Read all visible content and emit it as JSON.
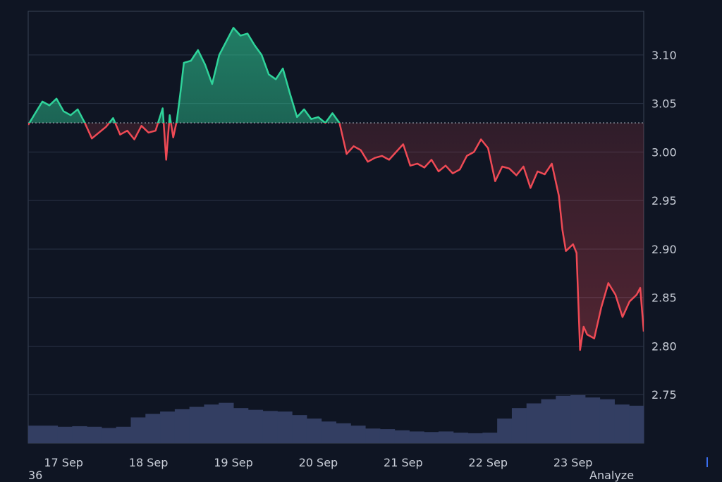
{
  "chart_data": {
    "type": "area",
    "title": "",
    "xlabel": "",
    "ylabel": "",
    "baseline": 3.03,
    "ylim": [
      2.7,
      3.145
    ],
    "y_ticks": [
      2.75,
      2.8,
      2.85,
      2.9,
      2.95,
      3.0,
      3.05,
      3.1
    ],
    "y_tick_labels": [
      "2.75",
      "2.80",
      "2.85",
      "2.90",
      "2.95",
      "3.00",
      "3.05",
      "3.10"
    ],
    "x_range": [
      "2023-09-16T14:00",
      "2023-09-23T20:00"
    ],
    "x_ticks": [
      "2023-09-17",
      "2023-09-18",
      "2023-09-19",
      "2023-09-20",
      "2023-09-21",
      "2023-09-22",
      "2023-09-23"
    ],
    "x_tick_labels": [
      "17 Sep",
      "18 Sep",
      "19 Sep",
      "20 Sep",
      "21 Sep",
      "22 Sep",
      "23 Sep"
    ],
    "grid": true,
    "colors": {
      "up": "#2fd39a",
      "down": "#ef4a55",
      "volume": "#333e62",
      "background": "#0f1523",
      "grid": "#2a3346",
      "baseline": "#9aa1ad"
    },
    "series": [
      {
        "values": [
          [
            "2023-09-16T14:00",
            3.028
          ],
          [
            "2023-09-16T16:00",
            3.04
          ],
          [
            "2023-09-16T18:00",
            3.052
          ],
          [
            "2023-09-16T20:00",
            3.048
          ],
          [
            "2023-09-16T22:00",
            3.055
          ],
          [
            "2023-09-17T00:00",
            3.042
          ],
          [
            "2023-09-17T02:00",
            3.038
          ],
          [
            "2023-09-17T04:00",
            3.044
          ],
          [
            "2023-09-17T06:00",
            3.03
          ],
          [
            "2023-09-17T08:00",
            3.014
          ],
          [
            "2023-09-17T10:00",
            3.02
          ],
          [
            "2023-09-17T12:00",
            3.026
          ],
          [
            "2023-09-17T14:00",
            3.035
          ],
          [
            "2023-09-17T16:00",
            3.018
          ],
          [
            "2023-09-17T18:00",
            3.022
          ],
          [
            "2023-09-17T20:00",
            3.013
          ],
          [
            "2023-09-17T22:00",
            3.027
          ],
          [
            "2023-09-18T00:00",
            3.02
          ],
          [
            "2023-09-18T02:00",
            3.022
          ],
          [
            "2023-09-18T04:00",
            3.045
          ],
          [
            "2023-09-18T05:00",
            2.992
          ],
          [
            "2023-09-18T06:00",
            3.038
          ],
          [
            "2023-09-18T07:00",
            3.015
          ],
          [
            "2023-09-18T08:00",
            3.032
          ],
          [
            "2023-09-18T09:00",
            3.06
          ],
          [
            "2023-09-18T10:00",
            3.092
          ],
          [
            "2023-09-18T12:00",
            3.094
          ],
          [
            "2023-09-18T14:00",
            3.105
          ],
          [
            "2023-09-18T16:00",
            3.09
          ],
          [
            "2023-09-18T18:00",
            3.07
          ],
          [
            "2023-09-18T20:00",
            3.1
          ],
          [
            "2023-09-18T22:00",
            3.114
          ],
          [
            "2023-09-19T00:00",
            3.128
          ],
          [
            "2023-09-19T02:00",
            3.12
          ],
          [
            "2023-09-19T04:00",
            3.122
          ],
          [
            "2023-09-19T06:00",
            3.11
          ],
          [
            "2023-09-19T08:00",
            3.1
          ],
          [
            "2023-09-19T10:00",
            3.08
          ],
          [
            "2023-09-19T12:00",
            3.075
          ],
          [
            "2023-09-19T14:00",
            3.086
          ],
          [
            "2023-09-19T16:00",
            3.06
          ],
          [
            "2023-09-19T18:00",
            3.036
          ],
          [
            "2023-09-19T20:00",
            3.044
          ],
          [
            "2023-09-19T22:00",
            3.034
          ],
          [
            "2023-09-20T00:00",
            3.036
          ],
          [
            "2023-09-20T02:00",
            3.03
          ],
          [
            "2023-09-20T04:00",
            3.04
          ],
          [
            "2023-09-20T06:00",
            3.03
          ],
          [
            "2023-09-20T08:00",
            2.998
          ],
          [
            "2023-09-20T10:00",
            3.006
          ],
          [
            "2023-09-20T12:00",
            3.002
          ],
          [
            "2023-09-20T14:00",
            2.99
          ],
          [
            "2023-09-20T16:00",
            2.994
          ],
          [
            "2023-09-20T18:00",
            2.996
          ],
          [
            "2023-09-20T20:00",
            2.992
          ],
          [
            "2023-09-20T22:00",
            3.0
          ],
          [
            "2023-09-21T00:00",
            3.008
          ],
          [
            "2023-09-21T02:00",
            2.986
          ],
          [
            "2023-09-21T04:00",
            2.988
          ],
          [
            "2023-09-21T06:00",
            2.984
          ],
          [
            "2023-09-21T08:00",
            2.992
          ],
          [
            "2023-09-21T10:00",
            2.98
          ],
          [
            "2023-09-21T12:00",
            2.986
          ],
          [
            "2023-09-21T14:00",
            2.978
          ],
          [
            "2023-09-21T16:00",
            2.982
          ],
          [
            "2023-09-21T18:00",
            2.996
          ],
          [
            "2023-09-21T20:00",
            3.0
          ],
          [
            "2023-09-21T22:00",
            3.013
          ],
          [
            "2023-09-22T00:00",
            3.004
          ],
          [
            "2023-09-22T02:00",
            2.97
          ],
          [
            "2023-09-22T04:00",
            2.985
          ],
          [
            "2023-09-22T06:00",
            2.983
          ],
          [
            "2023-09-22T08:00",
            2.976
          ],
          [
            "2023-09-22T10:00",
            2.985
          ],
          [
            "2023-09-22T12:00",
            2.963
          ],
          [
            "2023-09-22T14:00",
            2.98
          ],
          [
            "2023-09-22T16:00",
            2.977
          ],
          [
            "2023-09-22T18:00",
            2.988
          ],
          [
            "2023-09-22T20:00",
            2.955
          ],
          [
            "2023-09-22T21:00",
            2.92
          ],
          [
            "2023-09-22T22:00",
            2.898
          ],
          [
            "2023-09-23T00:00",
            2.905
          ],
          [
            "2023-09-23T01:00",
            2.896
          ],
          [
            "2023-09-23T02:00",
            2.796
          ],
          [
            "2023-09-23T03:00",
            2.82
          ],
          [
            "2023-09-23T04:00",
            2.812
          ],
          [
            "2023-09-23T06:00",
            2.808
          ],
          [
            "2023-09-23T08:00",
            2.84
          ],
          [
            "2023-09-23T10:00",
            2.865
          ],
          [
            "2023-09-23T12:00",
            2.853
          ],
          [
            "2023-09-23T14:00",
            2.83
          ],
          [
            "2023-09-23T16:00",
            2.846
          ],
          [
            "2023-09-23T18:00",
            2.853
          ],
          [
            "2023-09-23T19:00",
            2.86
          ],
          [
            "2023-09-23T20:00",
            2.815
          ]
        ]
      }
    ]
  },
  "volume_data": [
    0.3,
    0.3,
    0.28,
    0.29,
    0.28,
    0.26,
    0.28,
    0.44,
    0.5,
    0.54,
    0.58,
    0.62,
    0.66,
    0.69,
    0.6,
    0.57,
    0.55,
    0.54,
    0.48,
    0.42,
    0.37,
    0.34,
    0.3,
    0.25,
    0.24,
    0.22,
    0.2,
    0.19,
    0.2,
    0.18,
    0.17,
    0.18,
    0.42,
    0.6,
    0.68,
    0.75,
    0.81,
    0.82,
    0.78,
    0.75,
    0.66,
    0.64
  ],
  "footer": {
    "left_text": "36",
    "right_text": "Analyze"
  }
}
